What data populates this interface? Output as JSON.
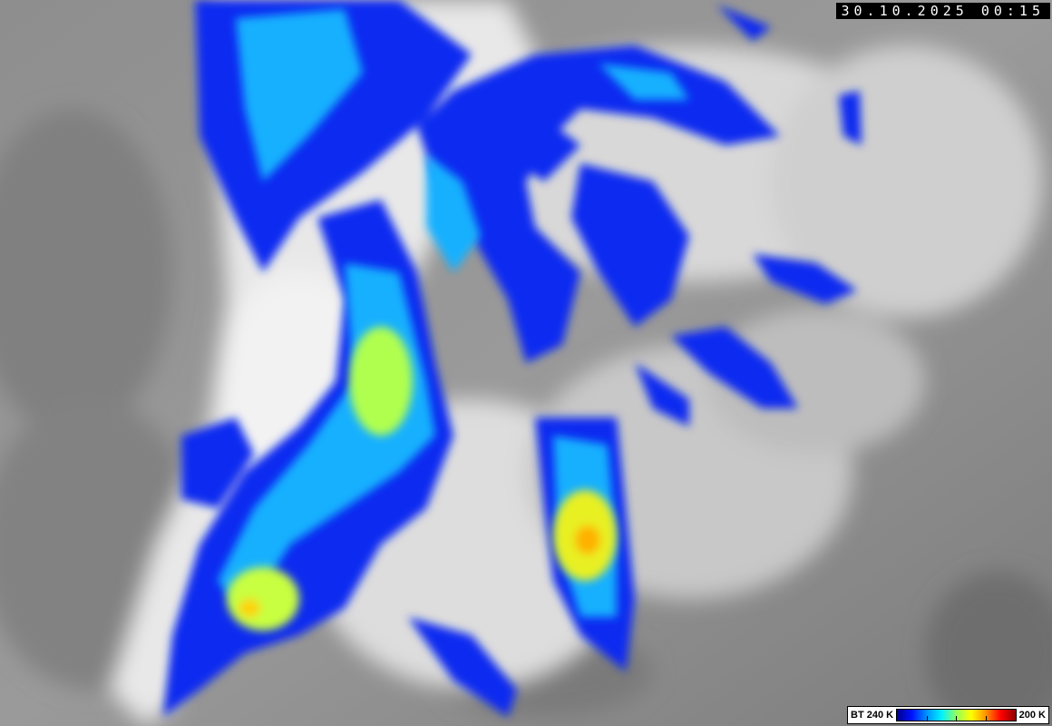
{
  "timestamp": "30.10.2025 00:15",
  "legend": {
    "label_left": "BT 240 K",
    "label_right": "200 K",
    "colors": [
      "#00008a",
      "#0010ff",
      "#0090ff",
      "#00f0ff",
      "#90ff60",
      "#ffff00",
      "#ff9000",
      "#ff0000",
      "#8a0000"
    ]
  }
}
